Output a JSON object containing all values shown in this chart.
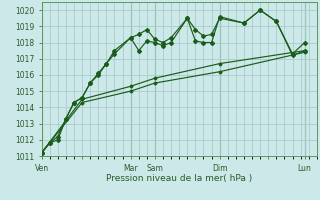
{
  "xlabel": "Pression niveau de la mer( hPa )",
  "bg_color": "#cce8e8",
  "grid_color": "#aacccc",
  "line_color": "#1a5c1a",
  "ylim": [
    1011,
    1020.5
  ],
  "yticks": [
    1011,
    1012,
    1013,
    1014,
    1015,
    1016,
    1017,
    1018,
    1019,
    1020
  ],
  "xtick_labels": [
    "Ven",
    "",
    "Mar",
    "Sam",
    "",
    "Dim",
    "",
    "Lun"
  ],
  "xtick_positions": [
    0,
    10,
    22,
    28,
    38,
    44,
    56,
    65
  ],
  "vlines": [
    0,
    22,
    28,
    44,
    65
  ],
  "series1_x": [
    0,
    2,
    4,
    6,
    8,
    10,
    12,
    14,
    16,
    18,
    22,
    24,
    26,
    28,
    30,
    32,
    36,
    38,
    40,
    42,
    44,
    50,
    54,
    58,
    62,
    65
  ],
  "series1_y": [
    1011.2,
    1011.8,
    1012.0,
    1013.3,
    1014.3,
    1014.6,
    1015.5,
    1016.0,
    1016.7,
    1017.3,
    1018.3,
    1017.5,
    1018.1,
    1018.0,
    1017.8,
    1018.0,
    1019.5,
    1018.1,
    1018.0,
    1018.0,
    1019.6,
    1019.2,
    1020.0,
    1019.3,
    1017.2,
    1017.5
  ],
  "series2_x": [
    0,
    2,
    4,
    6,
    8,
    10,
    12,
    14,
    16,
    18,
    22,
    24,
    26,
    28,
    30,
    32,
    36,
    38,
    40,
    42,
    44,
    50,
    54,
    58,
    62,
    65
  ],
  "series2_y": [
    1011.2,
    1011.8,
    1012.2,
    1013.3,
    1014.3,
    1014.6,
    1015.5,
    1016.1,
    1016.7,
    1017.5,
    1018.3,
    1018.5,
    1018.8,
    1018.2,
    1018.0,
    1018.3,
    1019.5,
    1018.8,
    1018.4,
    1018.5,
    1019.5,
    1019.2,
    1020.0,
    1019.3,
    1017.3,
    1018.0
  ],
  "series3_x": [
    0,
    10,
    22,
    28,
    44,
    65
  ],
  "series3_y": [
    1011.2,
    1014.5,
    1015.3,
    1015.8,
    1016.7,
    1017.5
  ],
  "series4_x": [
    0,
    10,
    22,
    28,
    44,
    65
  ],
  "series4_y": [
    1011.2,
    1014.3,
    1015.0,
    1015.5,
    1016.2,
    1017.4
  ]
}
